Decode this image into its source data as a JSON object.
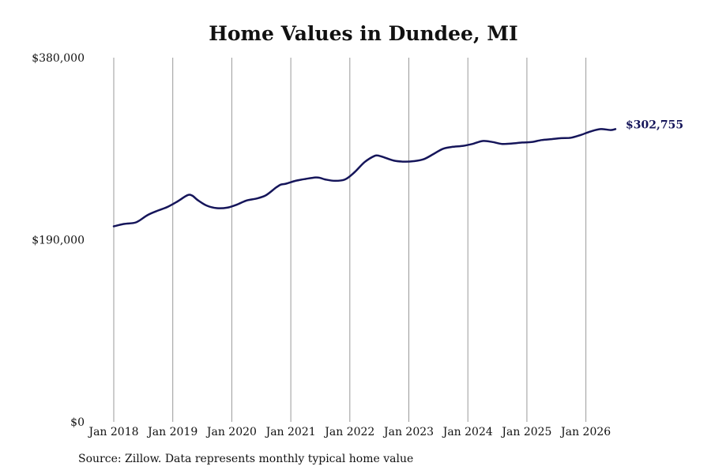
{
  "chart_data": {
    "type": "line",
    "title": "Home Values in Dundee, MI",
    "xlabel": "",
    "ylabel": "",
    "ylim": [
      0,
      380000
    ],
    "yticks": [
      {
        "value": 0,
        "label": "$0"
      },
      {
        "value": 190000,
        "label": "$190,000"
      },
      {
        "value": 380000,
        "label": "$380,000"
      }
    ],
    "xticks": [
      {
        "value": 2018,
        "label": "Jan 2018"
      },
      {
        "value": 2019,
        "label": "Jan 2019"
      },
      {
        "value": 2020,
        "label": "Jan 2020"
      },
      {
        "value": 2021,
        "label": "Jan 2021"
      },
      {
        "value": 2022,
        "label": "Jan 2022"
      },
      {
        "value": 2023,
        "label": "Jan 2023"
      },
      {
        "value": 2024,
        "label": "Jan 2024"
      },
      {
        "value": 2025,
        "label": "Jan 2025"
      },
      {
        "value": 2026,
        "label": "Jan 2026"
      }
    ],
    "xlim": [
      2018,
      2026.5
    ],
    "grid": "vertical",
    "line_color": "#15155a",
    "end_label": "$302,755",
    "series": [
      {
        "x": [
          2018.0,
          2018.17,
          2018.33,
          2018.42,
          2018.58,
          2018.75,
          2018.92,
          2019.08,
          2019.25,
          2019.33,
          2019.42,
          2019.58,
          2019.75,
          2019.92,
          2020.08,
          2020.25,
          2020.42,
          2020.58,
          2020.75,
          2020.83,
          2020.92,
          2021.08,
          2021.25,
          2021.42,
          2021.5,
          2021.58,
          2021.75,
          2021.92,
          2022.08,
          2022.25,
          2022.42,
          2022.5,
          2022.58,
          2022.75,
          2022.92,
          2023.08,
          2023.25,
          2023.42,
          2023.58,
          2023.75,
          2023.92,
          2024.08,
          2024.25,
          2024.42,
          2024.58,
          2024.75,
          2024.92,
          2025.08,
          2025.25,
          2025.42,
          2025.58,
          2025.75,
          2025.92,
          2026.08,
          2026.25,
          2026.42,
          2026.5
        ],
        "y": [
          204000,
          206500,
          207500,
          209500,
          216000,
          220500,
          224500,
          230000,
          236500,
          236000,
          231500,
          225500,
          223000,
          223500,
          226500,
          231000,
          233000,
          236500,
          244500,
          247500,
          248500,
          251500,
          253500,
          255000,
          254500,
          253000,
          251500,
          253000,
          260500,
          271000,
          277500,
          277500,
          276000,
          272500,
          271500,
          272000,
          274000,
          279500,
          285000,
          287000,
          288000,
          290000,
          293000,
          292000,
          290000,
          290500,
          291500,
          292000,
          294000,
          295000,
          296000,
          296500,
          299500,
          303000,
          305500,
          304500,
          305500
        ]
      }
    ]
  },
  "source_note": "Source: Zillow. Data represents monthly typical home value"
}
